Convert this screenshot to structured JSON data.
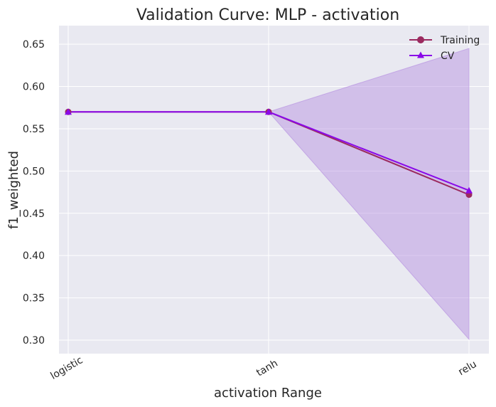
{
  "chart_data": {
    "type": "line",
    "title": "Validation Curve: MLP - activation",
    "xlabel": "activation Range",
    "ylabel": "f1_weighted",
    "categories": [
      "logistic",
      "tanh",
      "relu"
    ],
    "ylim": [
      0.284,
      0.672
    ],
    "yticks": [
      0.3,
      0.35,
      0.4,
      0.45,
      0.5,
      0.55,
      0.6,
      0.65
    ],
    "ytick_labels": [
      "0.30",
      "0.35",
      "0.40",
      "0.45",
      "0.50",
      "0.55",
      "0.60",
      "0.65"
    ],
    "grid": true,
    "legend_position": "top-right",
    "series": [
      {
        "name": "Training",
        "values": [
          0.57,
          0.57,
          0.472
        ],
        "lower": [
          0.57,
          0.57,
          0.472
        ],
        "upper": [
          0.57,
          0.57,
          0.472
        ],
        "color": "#9b2a5f",
        "marker": "circle"
      },
      {
        "name": "CV",
        "values": [
          0.57,
          0.57,
          0.477
        ],
        "lower": [
          0.57,
          0.57,
          0.301
        ],
        "upper": [
          0.57,
          0.57,
          0.645
        ],
        "color": "#8a0ae8",
        "marker": "triangle"
      }
    ],
    "band_color": "#b38be0",
    "plot_background": "#e9e9f1",
    "grid_color": "#ffffff"
  }
}
